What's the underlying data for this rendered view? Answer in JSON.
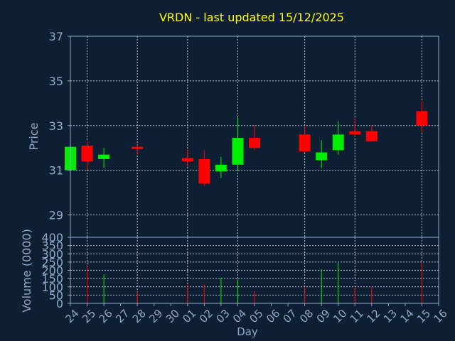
{
  "chart_data": {
    "type": "candlestick",
    "title": "VRDN - last updated 15/12/2025",
    "xlabel": "Day",
    "ylabel_price": "Price",
    "ylabel_volume": "Volume (0000)",
    "price_ylim": [
      28,
      37
    ],
    "price_ticks": [
      "29",
      "31",
      "33",
      "35",
      "37"
    ],
    "price_tick_values": [
      29,
      31,
      33,
      35,
      37
    ],
    "volume_ylim": [
      0,
      400
    ],
    "volume_ticks": [
      "0",
      "50",
      "100",
      "150",
      "200",
      "250",
      "300",
      "350",
      "400"
    ],
    "volume_tick_values": [
      0,
      50,
      100,
      150,
      200,
      250,
      300,
      350,
      400
    ],
    "x_labels": [
      "24",
      "25",
      "26",
      "27",
      "28",
      "29",
      "30",
      "01",
      "02",
      "03",
      "04",
      "05",
      "06",
      "07",
      "08",
      "09",
      "10",
      "11",
      "12",
      "13",
      "14",
      "15",
      "16"
    ],
    "x_gridlines": [
      "25",
      "28",
      "01",
      "04",
      "08",
      "11",
      "15"
    ],
    "candles": [
      {
        "day": "24",
        "open": 31.0,
        "high": 32.1,
        "low": 30.9,
        "close": 32.05
      },
      {
        "day": "25",
        "open": 32.1,
        "high": 32.3,
        "low": 31.0,
        "close": 31.4
      },
      {
        "day": "26",
        "open": 31.5,
        "high": 32.0,
        "low": 31.1,
        "close": 31.7
      },
      {
        "day": "28",
        "open": 32.05,
        "high": 32.15,
        "low": 31.7,
        "close": 31.95
      },
      {
        "day": "01",
        "open": 31.55,
        "high": 31.95,
        "low": 31.2,
        "close": 31.4
      },
      {
        "day": "02",
        "open": 31.5,
        "high": 31.9,
        "low": 30.3,
        "close": 30.4
      },
      {
        "day": "03",
        "open": 30.95,
        "high": 31.6,
        "low": 30.65,
        "close": 31.25
      },
      {
        "day": "04",
        "open": 31.25,
        "high": 33.4,
        "low": 31.0,
        "close": 32.45
      },
      {
        "day": "05",
        "open": 32.45,
        "high": 33.0,
        "low": 31.9,
        "close": 32.0
      },
      {
        "day": "08",
        "open": 32.6,
        "high": 33.0,
        "low": 31.8,
        "close": 31.85
      },
      {
        "day": "09",
        "open": 31.45,
        "high": 32.35,
        "low": 31.1,
        "close": 31.8
      },
      {
        "day": "10",
        "open": 31.9,
        "high": 33.2,
        "low": 31.7,
        "close": 32.6
      },
      {
        "day": "11",
        "open": 32.75,
        "high": 33.3,
        "low": 32.5,
        "close": 32.6
      },
      {
        "day": "12",
        "open": 32.75,
        "high": 33.0,
        "low": 32.3,
        "close": 32.3
      },
      {
        "day": "15",
        "open": 33.65,
        "high": 34.1,
        "low": 32.7,
        "close": 33.0
      }
    ],
    "volume": [
      {
        "day": "25",
        "value": 225
      },
      {
        "day": "26",
        "value": 175
      },
      {
        "day": "28",
        "value": 70
      },
      {
        "day": "01",
        "value": 115
      },
      {
        "day": "02",
        "value": 115
      },
      {
        "day": "03",
        "value": 155
      },
      {
        "day": "04",
        "value": 145
      },
      {
        "day": "05",
        "value": 75
      },
      {
        "day": "08",
        "value": 100
      },
      {
        "day": "09",
        "value": 205
      },
      {
        "day": "10",
        "value": 245
      },
      {
        "day": "11",
        "value": 100
      },
      {
        "day": "12",
        "value": 100
      },
      {
        "day": "15",
        "value": 245
      }
    ],
    "colors": {
      "background": "#0f1f33",
      "title": "#ffff00",
      "axis_text": "#8fa8c8",
      "frame": "#8fa8c8",
      "grid": "#b8c4d4",
      "up": "#00ee00",
      "down": "#ff0000"
    }
  }
}
